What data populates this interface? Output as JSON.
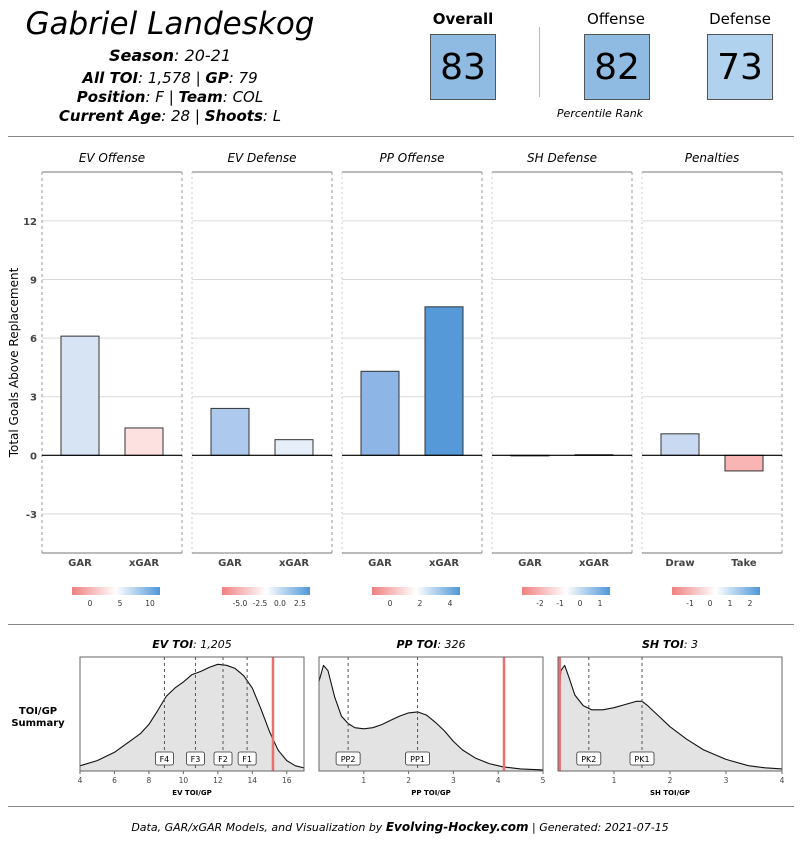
{
  "header": {
    "player_name": "Gabriel Landeskog",
    "season_label": "Season",
    "season_value": "20-21",
    "toi_label": "All TOI",
    "toi_value": "1,578",
    "gp_label": "GP",
    "gp_value": "79",
    "position_label": "Position",
    "position_value": "F",
    "team_label": "Team",
    "team_value": "COL",
    "age_label": "Current Age",
    "age_value": "28",
    "shoots_label": "Shoots",
    "shoots_value": "L"
  },
  "ratings": {
    "overall_label": "Overall",
    "overall_value": "83",
    "offense_label": "Offense",
    "offense_value": "82",
    "defense_label": "Defense",
    "defense_value": "73",
    "percentile_label": "Percentile Rank",
    "colors": {
      "overall": "#8fbbe3",
      "offense": "#8fbbe3",
      "defense": "#b0d2ee"
    }
  },
  "chart_data": [
    {
      "type": "bar",
      "ylabel": "Total Goals Above Replacement",
      "ylim": [
        -5,
        14.5
      ],
      "yticks": [
        -3,
        0,
        3,
        6,
        9,
        12
      ],
      "panels": [
        {
          "title": "EV Offense",
          "categories": [
            "GAR",
            "xGAR"
          ],
          "values": [
            6.1,
            1.4
          ],
          "colors": [
            "#d7e4f4",
            "#fde0e0"
          ],
          "legend": {
            "stops": [
              "#f08080",
              "#ffffff",
              "#4f97d8"
            ],
            "ticks": [
              "0",
              "5",
              "10"
            ]
          }
        },
        {
          "title": "EV Defense",
          "categories": [
            "GAR",
            "xGAR"
          ],
          "values": [
            2.4,
            0.8
          ],
          "colors": [
            "#adc9ee",
            "#e6eef9"
          ],
          "legend": {
            "stops": [
              "#f08080",
              "#ffffff",
              "#4f97d8"
            ],
            "ticks": [
              "-5.0",
              "-2.5",
              "0.0",
              "2.5"
            ]
          }
        },
        {
          "title": "PP Offense",
          "categories": [
            "GAR",
            "xGAR"
          ],
          "values": [
            4.3,
            7.6
          ],
          "colors": [
            "#8db6e6",
            "#5599d8"
          ],
          "legend": {
            "stops": [
              "#f08080",
              "#ffffff",
              "#4f97d8"
            ],
            "ticks": [
              "0",
              "2",
              "4"
            ]
          }
        },
        {
          "title": "SH Defense",
          "categories": [
            "GAR",
            "xGAR"
          ],
          "values": [
            0.0,
            0.03
          ],
          "colors": [
            "#ffffff",
            "#ffffff"
          ],
          "legend": {
            "stops": [
              "#f08080",
              "#ffffff",
              "#4f97d8"
            ],
            "ticks": [
              "-2",
              "-1",
              "0",
              "1"
            ]
          }
        },
        {
          "title": "Penalties",
          "categories": [
            "Draw",
            "Take"
          ],
          "values": [
            1.1,
            -0.8
          ],
          "colors": [
            "#c8d9f1",
            "#f9b4b4"
          ],
          "legend": {
            "stops": [
              "#f08080",
              "#ffffff",
              "#4f97d8"
            ],
            "ticks": [
              "-1",
              "0",
              "1",
              "2"
            ]
          }
        }
      ]
    },
    {
      "type": "area",
      "summary_label_1": "TOI/GP",
      "summary_label_2": "Summary",
      "marker_color": "#e87070",
      "panels": [
        {
          "title_label": "EV TOI",
          "title_value": "1,205",
          "xlabel": "EV TOI/GP",
          "xlim": [
            4,
            17
          ],
          "xticks": [
            4,
            6,
            8,
            10,
            12,
            14,
            16
          ],
          "density_x": [
            4,
            5,
            6,
            7,
            7.5,
            8,
            8.5,
            9,
            9.5,
            10,
            10.5,
            11,
            11.5,
            12,
            12.5,
            13,
            13.5,
            14,
            14.5,
            15,
            15.5,
            16,
            16.5,
            17
          ],
          "density_y": [
            0.05,
            0.1,
            0.18,
            0.3,
            0.36,
            0.45,
            0.58,
            0.72,
            0.8,
            0.86,
            0.93,
            0.96,
            1.0,
            1.03,
            1.02,
            0.99,
            0.92,
            0.8,
            0.6,
            0.38,
            0.2,
            0.1,
            0.05,
            0.03
          ],
          "ymax": 1.1,
          "lines": [
            {
              "label": "F4",
              "x": 8.9
            },
            {
              "label": "F3",
              "x": 10.7
            },
            {
              "label": "F2",
              "x": 12.3
            },
            {
              "label": "F1",
              "x": 13.7
            }
          ],
          "player_value": 15.2
        },
        {
          "title_label": "PP TOI",
          "title_value": "326",
          "xlabel": "PP TOI/GP",
          "xlim": [
            0,
            5
          ],
          "xticks": [
            1,
            2,
            3,
            4,
            5
          ],
          "density_x": [
            0,
            0.1,
            0.2,
            0.35,
            0.5,
            0.65,
            0.8,
            1.0,
            1.2,
            1.4,
            1.6,
            1.8,
            2.0,
            2.2,
            2.4,
            2.6,
            2.8,
            3.0,
            3.2,
            3.5,
            3.8,
            4.1,
            4.5,
            5.0
          ],
          "density_y": [
            0.85,
            1.0,
            0.95,
            0.7,
            0.52,
            0.45,
            0.41,
            0.4,
            0.41,
            0.44,
            0.48,
            0.52,
            0.55,
            0.56,
            0.53,
            0.46,
            0.38,
            0.28,
            0.2,
            0.12,
            0.07,
            0.04,
            0.02,
            0.01
          ],
          "ymax": 1.08,
          "lines": [
            {
              "label": "PP2",
              "x": 0.65
            },
            {
              "label": "PP1",
              "x": 2.2
            }
          ],
          "player_value": 4.13
        },
        {
          "title_label": "SH TOI",
          "title_value": "3",
          "xlabel": "SH TOI/GP",
          "xlim": [
            0,
            4
          ],
          "xticks": [
            1,
            2,
            3,
            4
          ],
          "density_x": [
            0,
            0.05,
            0.12,
            0.2,
            0.3,
            0.45,
            0.6,
            0.8,
            1.0,
            1.2,
            1.4,
            1.5,
            1.6,
            1.8,
            2.0,
            2.3,
            2.6,
            3.0,
            3.4,
            3.7,
            4.0
          ],
          "density_y": [
            0.5,
            0.95,
            1.0,
            0.88,
            0.72,
            0.62,
            0.58,
            0.58,
            0.6,
            0.63,
            0.66,
            0.66,
            0.62,
            0.52,
            0.42,
            0.3,
            0.2,
            0.11,
            0.05,
            0.03,
            0.02
          ],
          "ymax": 1.08,
          "lines": [
            {
              "label": "PK2",
              "x": 0.55
            },
            {
              "label": "PK1",
              "x": 1.5
            }
          ],
          "player_value": 0.03
        }
      ]
    }
  ],
  "footer": {
    "prefix": "Data, GAR/xGAR Models, and Visualization by ",
    "brand": "Evolving-Hockey.com",
    "suffix": " | Generated: 2021-07-15"
  }
}
